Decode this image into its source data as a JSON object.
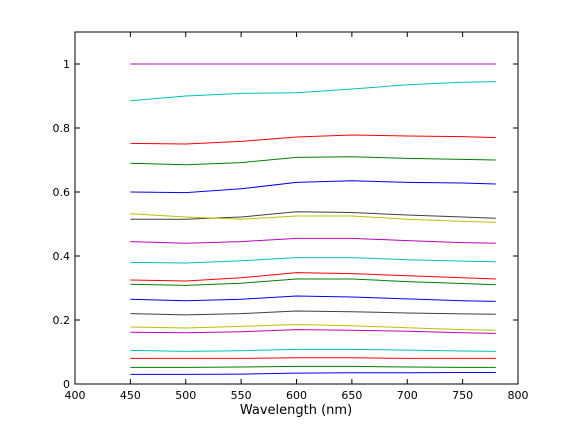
{
  "chart_data": {
    "type": "line",
    "title": "",
    "xlabel": "Wavelength (nm)",
    "ylabel": "",
    "xlim": [
      400,
      800
    ],
    "ylim": [
      0,
      1.1
    ],
    "x_ticks": [
      400,
      450,
      500,
      550,
      600,
      650,
      700,
      750,
      800
    ],
    "y_ticks": [
      0,
      0.2,
      0.4,
      0.6,
      0.8,
      1
    ],
    "x_tick_labels": [
      "400",
      "450",
      "500",
      "550",
      "600",
      "650",
      "700",
      "750",
      "800"
    ],
    "y_tick_labels": [
      "0",
      "0.2",
      "0.4",
      "0.6",
      "0.8",
      "1"
    ],
    "grid": false,
    "legend": "none",
    "x": [
      450,
      500,
      550,
      600,
      650,
      700,
      750,
      780
    ],
    "series": [
      {
        "color": "#bf00bf",
        "values": [
          1.0,
          1.0,
          1.0,
          1.0,
          1.0,
          1.0,
          1.0,
          1.0
        ]
      },
      {
        "color": "#00bfbf",
        "values": [
          0.885,
          0.9,
          0.908,
          0.91,
          0.922,
          0.935,
          0.943,
          0.945
        ]
      },
      {
        "color": "#ff0000",
        "values": [
          0.752,
          0.75,
          0.758,
          0.772,
          0.778,
          0.775,
          0.773,
          0.77
        ]
      },
      {
        "color": "#008000",
        "values": [
          0.69,
          0.685,
          0.692,
          0.708,
          0.71,
          0.705,
          0.702,
          0.7
        ]
      },
      {
        "color": "#0000ff",
        "values": [
          0.6,
          0.598,
          0.61,
          0.63,
          0.635,
          0.63,
          0.628,
          0.625
        ]
      },
      {
        "color": "#404040",
        "values": [
          0.515,
          0.515,
          0.522,
          0.538,
          0.536,
          0.528,
          0.522,
          0.518
        ]
      },
      {
        "color": "#bfbf00",
        "values": [
          0.532,
          0.522,
          0.515,
          0.525,
          0.525,
          0.515,
          0.508,
          0.505
        ]
      },
      {
        "color": "#bf00bf",
        "values": [
          0.445,
          0.44,
          0.445,
          0.455,
          0.455,
          0.448,
          0.442,
          0.44
        ]
      },
      {
        "color": "#00bfbf",
        "values": [
          0.38,
          0.378,
          0.385,
          0.395,
          0.395,
          0.388,
          0.384,
          0.382
        ]
      },
      {
        "color": "#ff0000",
        "values": [
          0.325,
          0.322,
          0.332,
          0.348,
          0.345,
          0.338,
          0.332,
          0.328
        ]
      },
      {
        "color": "#008000",
        "values": [
          0.312,
          0.308,
          0.315,
          0.328,
          0.328,
          0.32,
          0.314,
          0.31
        ]
      },
      {
        "color": "#0000ff",
        "values": [
          0.265,
          0.26,
          0.265,
          0.275,
          0.272,
          0.266,
          0.26,
          0.258
        ]
      },
      {
        "color": "#404040",
        "values": [
          0.22,
          0.216,
          0.22,
          0.228,
          0.226,
          0.222,
          0.219,
          0.218
        ]
      },
      {
        "color": "#bfbf00",
        "values": [
          0.178,
          0.175,
          0.18,
          0.186,
          0.182,
          0.176,
          0.17,
          0.168
        ]
      },
      {
        "color": "#bf00bf",
        "values": [
          0.162,
          0.16,
          0.163,
          0.17,
          0.168,
          0.165,
          0.16,
          0.158
        ]
      },
      {
        "color": "#00bfbf",
        "values": [
          0.105,
          0.102,
          0.104,
          0.108,
          0.108,
          0.106,
          0.103,
          0.102
        ]
      },
      {
        "color": "#ff0000",
        "values": [
          0.08,
          0.08,
          0.08,
          0.082,
          0.082,
          0.08,
          0.08,
          0.08
        ]
      },
      {
        "color": "#008000",
        "values": [
          0.052,
          0.052,
          0.053,
          0.055,
          0.055,
          0.053,
          0.052,
          0.052
        ]
      },
      {
        "color": "#0000ff",
        "values": [
          0.03,
          0.03,
          0.031,
          0.034,
          0.035,
          0.035,
          0.036,
          0.036
        ]
      }
    ]
  }
}
